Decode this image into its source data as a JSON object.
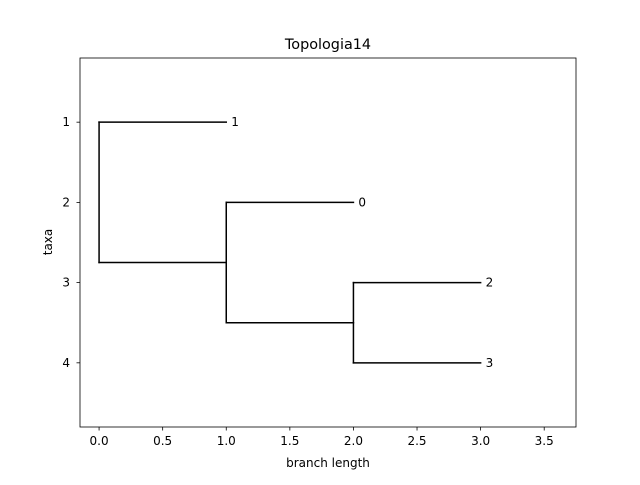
{
  "chart_data": {
    "type": "tree",
    "title": "Topologia14",
    "xlabel": "branch length",
    "ylabel": "taxa",
    "xlim": [
      -0.15,
      3.75
    ],
    "ylim": [
      4.8,
      0.2
    ],
    "x_ticks": [
      0.0,
      0.5,
      1.0,
      1.5,
      2.0,
      2.5,
      3.0,
      3.5
    ],
    "x_tick_labels": [
      "0.0",
      "0.5",
      "1.0",
      "1.5",
      "2.0",
      "2.5",
      "3.0",
      "3.5"
    ],
    "y_ticks": [
      1,
      2,
      3,
      4
    ],
    "y_tick_labels": [
      "1",
      "2",
      "3",
      "4"
    ],
    "horizontal_branches": [
      {
        "x0": 0.0,
        "x1": 1.0,
        "y": 1
      },
      {
        "x0": 0.0,
        "x1": 1.0,
        "y": 2.75
      },
      {
        "x0": 1.0,
        "x1": 2.0,
        "y": 2
      },
      {
        "x0": 1.0,
        "x1": 2.0,
        "y": 3.5
      },
      {
        "x0": 2.0,
        "x1": 3.0,
        "y": 3
      },
      {
        "x0": 2.0,
        "x1": 3.0,
        "y": 4
      }
    ],
    "vertical_branches": [
      {
        "x": 0.0,
        "y0": 1,
        "y1": 2.75
      },
      {
        "x": 1.0,
        "y0": 2,
        "y1": 3.5
      },
      {
        "x": 2.0,
        "y0": 3,
        "y1": 4
      }
    ],
    "leaves": [
      {
        "label": "1",
        "x": 1.0,
        "y": 1
      },
      {
        "label": "0",
        "x": 2.0,
        "y": 2
      },
      {
        "label": "2",
        "x": 3.0,
        "y": 3
      },
      {
        "label": "3",
        "x": 3.0,
        "y": 4
      }
    ],
    "line_color": "#000000",
    "grid": false
  }
}
